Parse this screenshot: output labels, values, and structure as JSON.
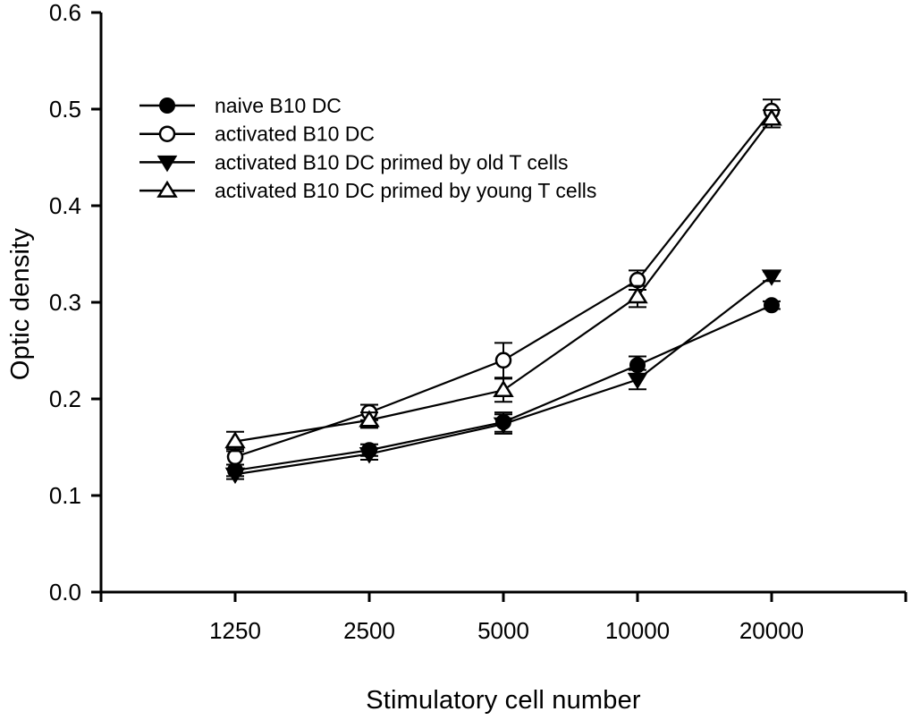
{
  "figure": {
    "background": "#ffffff",
    "foreground": "#000000"
  },
  "chart_data": {
    "type": "line",
    "title": "",
    "xlabel": "Stimulatory cell number",
    "ylabel": "Optic density",
    "x_tick_labels": [
      "1250",
      "2500",
      "5000",
      "10000",
      "20000"
    ],
    "y_ticks": [
      0.0,
      0.1,
      0.2,
      0.3,
      0.4,
      0.5,
      0.6
    ],
    "ylim": [
      0.0,
      0.6
    ],
    "grid": false,
    "error_bars": true,
    "legend_position": "upper-left-inside",
    "series": [
      {
        "name": "naive B10 DC",
        "marker": "filled-circle",
        "color": "#000000",
        "values": [
          0.126,
          0.147,
          0.176,
          0.235,
          0.297
        ],
        "errors": [
          0.006,
          0.006,
          0.01,
          0.009,
          0.004
        ]
      },
      {
        "name": "activated B10 DC",
        "marker": "open-circle",
        "color": "#000000",
        "values": [
          0.14,
          0.186,
          0.24,
          0.323,
          0.498
        ],
        "errors": [
          0.008,
          0.008,
          0.018,
          0.01,
          0.012
        ]
      },
      {
        "name": "activated B10 DC primed by old T cells",
        "marker": "filled-triangle-down",
        "color": "#000000",
        "values": [
          0.122,
          0.143,
          0.174,
          0.22,
          0.327
        ],
        "errors": [
          0.005,
          0.006,
          0.01,
          0.01,
          0.005
        ]
      },
      {
        "name": "activated B10 DC primed by young T cells",
        "marker": "open-triangle-up",
        "color": "#000000",
        "values": [
          0.156,
          0.178,
          0.209,
          0.306,
          0.49
        ],
        "errors": [
          0.01,
          0.008,
          0.012,
          0.011,
          0.009
        ]
      }
    ]
  }
}
